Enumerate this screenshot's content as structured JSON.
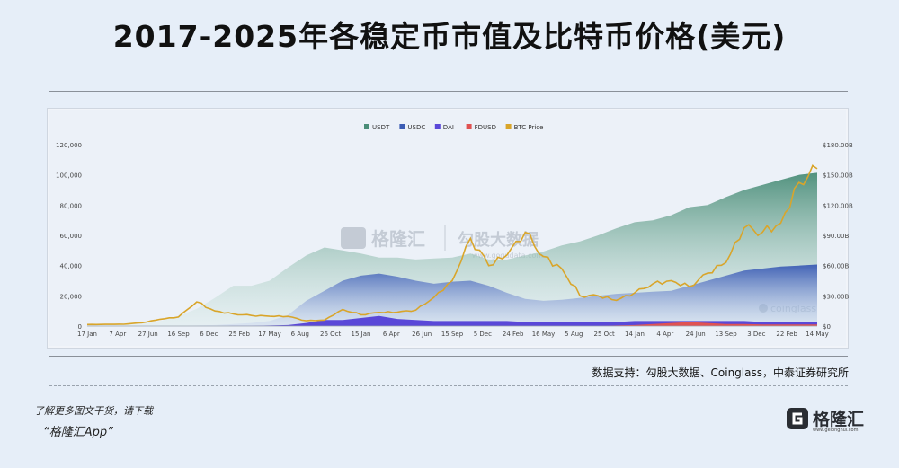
{
  "title": "2017-2025年各稳定币市值及比特币价格(美元)",
  "source": "数据支持：勾股大数据、Coinglass，中泰证券研究所",
  "cta": {
    "line1": "了解更多图文干货，请下载",
    "line2": "“格隆汇App”"
  },
  "brand": {
    "logo_text": "格隆汇",
    "logo_url": "www.gelonghui.com"
  },
  "watermarks": {
    "brand1": "格隆汇",
    "brand2": "勾股大数据",
    "url": "www.gogudata.com",
    "coinglass": "coinglass"
  },
  "chart_data": {
    "type": "area",
    "title": "",
    "xlabel": "",
    "ylabel": "",
    "x_ticks": [
      "17 Jan",
      "7 Apr",
      "27 Jun",
      "16 Sep",
      "6 Dec",
      "25 Feb",
      "17 May",
      "6 Aug",
      "26 Oct",
      "15 Jan",
      "6 Apr",
      "26 Jun",
      "15 Sep",
      "5 Dec",
      "24 Feb",
      "16 May",
      "5 Aug",
      "25 Oct",
      "14 Jan",
      "4 Apr",
      "24 Jun",
      "13 Sep",
      "3 Dec",
      "22 Feb",
      "14 May"
    ],
    "y_left_ticks": [
      "0",
      "20,000",
      "40,000",
      "60,000",
      "80,000",
      "100,000",
      "120,000"
    ],
    "y_left_range": [
      0,
      120000
    ],
    "y_right_ticks": [
      "$0",
      "$30.00B",
      "$60.00B",
      "$90.00B",
      "$120.00B",
      "$150.00B",
      "$180.00B"
    ],
    "y_right_range": [
      0,
      180
    ],
    "legend_position": "top-center",
    "grid": false,
    "colors": {
      "USDT": "#4a8d78",
      "USDC": "#3b5cb4",
      "DAI": "#5a48d8",
      "FDUSD": "#e05252",
      "BTC": "#d9a52a"
    },
    "series": [
      {
        "name": "USDT",
        "axis": "right",
        "values": [
          0.5,
          1,
          2,
          3,
          5,
          10,
          17,
          28,
          40,
          40,
          45,
          58,
          70,
          78,
          75,
          72,
          68,
          68,
          66,
          67,
          68,
          72,
          66,
          66,
          70,
          74,
          80,
          84,
          90,
          97,
          103,
          105,
          110,
          118,
          120,
          128,
          135,
          140,
          145,
          150,
          152
        ]
      },
      {
        "name": "USDC",
        "axis": "right",
        "values": [
          0,
          0,
          0,
          0,
          0,
          0,
          0.5,
          1,
          2,
          3,
          5,
          11,
          25,
          35,
          45,
          50,
          52,
          49,
          45,
          42,
          44,
          45,
          40,
          33,
          27,
          25,
          26,
          28,
          30,
          32,
          33,
          34,
          35,
          40,
          45,
          50,
          55,
          57,
          59,
          60,
          61
        ]
      },
      {
        "name": "DAI",
        "axis": "right",
        "values": [
          0,
          0,
          0,
          0,
          0,
          0,
          0,
          0,
          0.2,
          0.3,
          0.5,
          1,
          3,
          6,
          6,
          8,
          10,
          7,
          6,
          5,
          5,
          5,
          5,
          5,
          4,
          4,
          4,
          4,
          4,
          4,
          5,
          5,
          5,
          5,
          5,
          5,
          5,
          4,
          4,
          4,
          4
        ]
      },
      {
        "name": "FDUSD",
        "axis": "right",
        "values": [
          0,
          0,
          0,
          0,
          0,
          0,
          0,
          0,
          0,
          0,
          0,
          0,
          0,
          0,
          0,
          0,
          0,
          0,
          0,
          0,
          0,
          0,
          0,
          0,
          0,
          0,
          0,
          0,
          0,
          0.5,
          1,
          2,
          3,
          4,
          3,
          2,
          2,
          1.5,
          1.5,
          1.5,
          1.5
        ]
      },
      {
        "name": "BTC Price",
        "axis": "left",
        "values": [
          1000,
          1100,
          1200,
          2200,
          4500,
          6000,
          16000,
          10000,
          8000,
          7000,
          6500,
          6400,
          3500,
          4000,
          11000,
          7500,
          9000,
          9200,
          10500,
          19000,
          30000,
          58000,
          40000,
          47000,
          62000,
          46000,
          38000,
          20000,
          20000,
          17000,
          22000,
          28000,
          30000,
          26000,
          35000,
          42000,
          65000,
          62000,
          68000,
          95000,
          104000
        ]
      }
    ]
  }
}
